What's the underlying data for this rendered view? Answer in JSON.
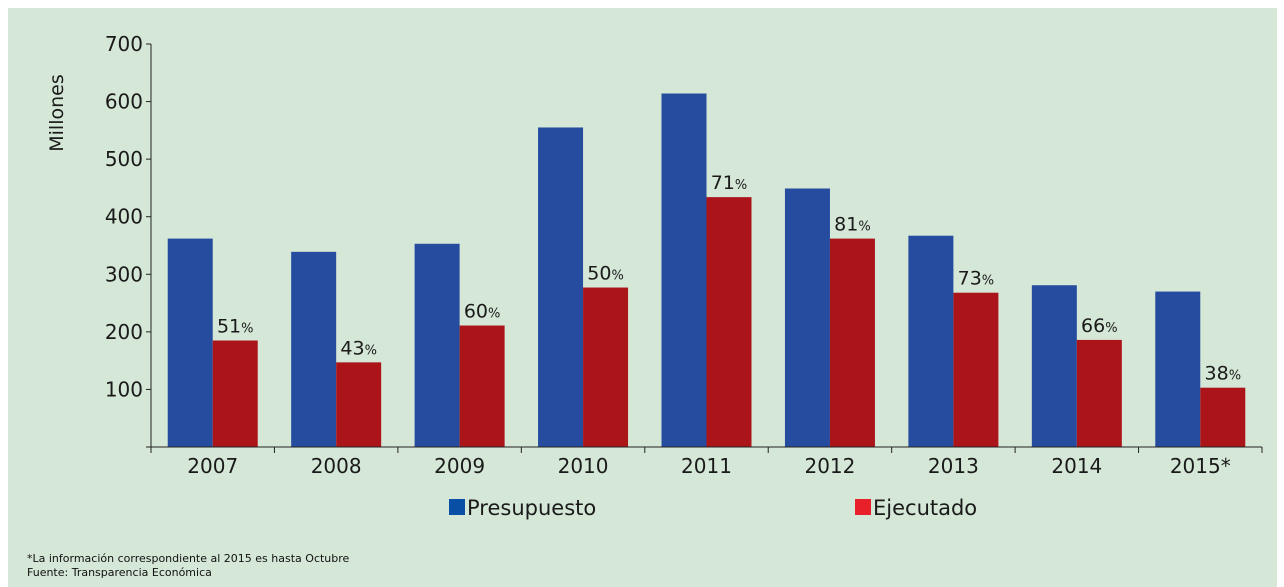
{
  "chart_data": {
    "type": "bar",
    "ylabel": "Millones",
    "ylim": [
      0,
      700
    ],
    "yticks": [
      100,
      200,
      300,
      400,
      500,
      600,
      700
    ],
    "grid": false,
    "legend_position": "bottom",
    "categories": [
      "2007",
      "2008",
      "2009",
      "2010",
      "2011",
      "2012",
      "2013",
      "2014",
      "2015*"
    ],
    "series": [
      {
        "name": "Presupuesto",
        "color": "#254c9e",
        "values": [
          362,
          339,
          353,
          555,
          614,
          449,
          367,
          281,
          270
        ]
      },
      {
        "name": "Ejecutado",
        "color": "#ab151a",
        "values": [
          185,
          147,
          211,
          277,
          434,
          362,
          268,
          186,
          103
        ]
      }
    ],
    "execution_labels": [
      {
        "number": "51",
        "unit": "%"
      },
      {
        "number": "43",
        "unit": "%"
      },
      {
        "number": "60",
        "unit": "%"
      },
      {
        "number": "50",
        "unit": "%"
      },
      {
        "number": "71",
        "unit": "%"
      },
      {
        "number": "81",
        "unit": "%"
      },
      {
        "number": "73",
        "unit": "%"
      },
      {
        "number": "66",
        "unit": "%"
      },
      {
        "number": "38",
        "unit": "%"
      }
    ],
    "legend_swatch_colors": [
      "#0a4fa6",
      "#e8202a"
    ]
  },
  "footnotes": {
    "note": "*La información correspondiente al 2015 es hasta Octubre",
    "source": "Fuente: Transparencia Económica"
  }
}
